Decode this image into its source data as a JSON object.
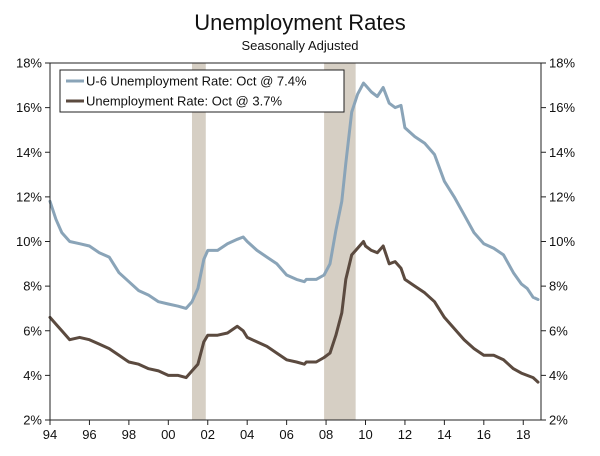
{
  "chart_data": {
    "type": "line",
    "title": "Unemployment Rates",
    "subtitle": "Seasonally Adjusted",
    "xlabel": "",
    "ylabel": "",
    "xlim": [
      1994,
      2018.9
    ],
    "ylim": [
      2,
      18
    ],
    "x_ticks": [
      {
        "value": 1994,
        "label": "94"
      },
      {
        "value": 1996,
        "label": "96"
      },
      {
        "value": 1998,
        "label": "98"
      },
      {
        "value": 2000,
        "label": "00"
      },
      {
        "value": 2002,
        "label": "02"
      },
      {
        "value": 2004,
        "label": "04"
      },
      {
        "value": 2006,
        "label": "06"
      },
      {
        "value": 2008,
        "label": "08"
      },
      {
        "value": 2010,
        "label": "10"
      },
      {
        "value": 2012,
        "label": "12"
      },
      {
        "value": 2014,
        "label": "14"
      },
      {
        "value": 2016,
        "label": "16"
      },
      {
        "value": 2018,
        "label": "18"
      }
    ],
    "y_ticks": [
      {
        "value": 2,
        "label": "2%"
      },
      {
        "value": 4,
        "label": "4%"
      },
      {
        "value": 6,
        "label": "6%"
      },
      {
        "value": 8,
        "label": "8%"
      },
      {
        "value": 10,
        "label": "10%"
      },
      {
        "value": 12,
        "label": "12%"
      },
      {
        "value": 14,
        "label": "14%"
      },
      {
        "value": 16,
        "label": "16%"
      },
      {
        "value": 18,
        "label": "18%"
      }
    ],
    "grid": false,
    "legend_position": "top-left",
    "recessions": [
      {
        "start": 2001.2,
        "end": 2001.9
      },
      {
        "start": 2007.9,
        "end": 2009.5
      }
    ],
    "recession_color": "#d6cfc4",
    "series": [
      {
        "name": "U-6 Unemployment Rate: Oct @ 7.4%",
        "color": "#8aa4b8",
        "x": [
          1994.0,
          1994.3,
          1994.6,
          1995.0,
          1995.5,
          1996.0,
          1996.5,
          1997.0,
          1997.5,
          1998.0,
          1998.5,
          1999.0,
          1999.5,
          2000.0,
          2000.5,
          2000.9,
          2001.2,
          2001.5,
          2001.8,
          2002.0,
          2002.5,
          2003.0,
          2003.5,
          2003.8,
          2004.0,
          2004.5,
          2005.0,
          2005.5,
          2006.0,
          2006.5,
          2006.9,
          2007.0,
          2007.5,
          2007.9,
          2008.2,
          2008.5,
          2008.8,
          2009.0,
          2009.3,
          2009.6,
          2009.9,
          2010.0,
          2010.3,
          2010.6,
          2010.9,
          2011.2,
          2011.5,
          2011.8,
          2012.0,
          2012.5,
          2013.0,
          2013.5,
          2014.0,
          2014.5,
          2015.0,
          2015.5,
          2016.0,
          2016.5,
          2017.0,
          2017.5,
          2017.9,
          2018.2,
          2018.5,
          2018.75
        ],
        "values": [
          11.8,
          11.0,
          10.4,
          10.0,
          9.9,
          9.8,
          9.5,
          9.3,
          8.6,
          8.2,
          7.8,
          7.6,
          7.3,
          7.2,
          7.1,
          7.0,
          7.3,
          7.9,
          9.2,
          9.6,
          9.6,
          9.9,
          10.1,
          10.2,
          10.0,
          9.6,
          9.3,
          9.0,
          8.5,
          8.3,
          8.2,
          8.3,
          8.3,
          8.5,
          9.0,
          10.5,
          11.8,
          13.5,
          15.8,
          16.6,
          17.1,
          17.0,
          16.7,
          16.5,
          16.9,
          16.2,
          16.0,
          16.1,
          15.1,
          14.7,
          14.4,
          13.9,
          12.7,
          12.0,
          11.2,
          10.4,
          9.9,
          9.7,
          9.4,
          8.6,
          8.1,
          7.9,
          7.5,
          7.4
        ]
      },
      {
        "name": "Unemployment Rate: Oct @ 3.7%",
        "color": "#5b4a3f",
        "x": [
          1994.0,
          1994.3,
          1994.6,
          1995.0,
          1995.5,
          1996.0,
          1996.5,
          1997.0,
          1997.5,
          1998.0,
          1998.5,
          1999.0,
          1999.5,
          2000.0,
          2000.5,
          2000.9,
          2001.2,
          2001.5,
          2001.8,
          2002.0,
          2002.5,
          2003.0,
          2003.5,
          2003.8,
          2004.0,
          2004.5,
          2005.0,
          2005.5,
          2006.0,
          2006.5,
          2006.9,
          2007.0,
          2007.5,
          2007.9,
          2008.2,
          2008.5,
          2008.8,
          2009.0,
          2009.3,
          2009.6,
          2009.9,
          2010.0,
          2010.3,
          2010.6,
          2010.9,
          2011.2,
          2011.5,
          2011.8,
          2012.0,
          2012.5,
          2013.0,
          2013.5,
          2014.0,
          2014.5,
          2015.0,
          2015.5,
          2016.0,
          2016.5,
          2017.0,
          2017.5,
          2017.9,
          2018.2,
          2018.5,
          2018.75
        ],
        "values": [
          6.6,
          6.3,
          6.0,
          5.6,
          5.7,
          5.6,
          5.4,
          5.2,
          4.9,
          4.6,
          4.5,
          4.3,
          4.2,
          4.0,
          4.0,
          3.9,
          4.2,
          4.5,
          5.5,
          5.8,
          5.8,
          5.9,
          6.2,
          6.0,
          5.7,
          5.5,
          5.3,
          5.0,
          4.7,
          4.6,
          4.5,
          4.6,
          4.6,
          4.8,
          5.0,
          5.8,
          6.8,
          8.3,
          9.4,
          9.7,
          10.0,
          9.8,
          9.6,
          9.5,
          9.8,
          9.0,
          9.1,
          8.8,
          8.3,
          8.0,
          7.7,
          7.3,
          6.6,
          6.1,
          5.6,
          5.2,
          4.9,
          4.9,
          4.7,
          4.3,
          4.1,
          4.0,
          3.9,
          3.7
        ]
      }
    ]
  }
}
